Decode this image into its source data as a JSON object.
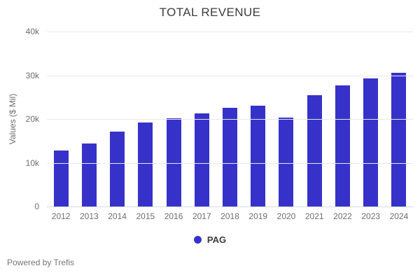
{
  "title": "TOTAL REVENUE",
  "footer": {
    "text": "Powered by Trefis"
  },
  "legend": {
    "items": [
      {
        "label": "PAG",
        "color": "#3632c9"
      }
    ]
  },
  "colors": {
    "bar": "#3632c9",
    "gridline": "#e8e8e8",
    "axis_line": "#d4d9e2",
    "title_text": "#3d3d3d",
    "tick_text": "#6e6e6e",
    "footer_text": "#757575"
  },
  "chart_data": {
    "type": "bar",
    "title": "TOTAL REVENUE",
    "xlabel": "",
    "ylabel": "Values ($ Mil)",
    "categories": [
      "2012",
      "2013",
      "2014",
      "2015",
      "2016",
      "2017",
      "2018",
      "2019",
      "2020",
      "2021",
      "2022",
      "2023",
      "2024"
    ],
    "series": [
      {
        "name": "PAG",
        "color": "#3632c9",
        "values": [
          12800,
          14400,
          17100,
          19200,
          20100,
          21300,
          22600,
          23100,
          20300,
          25400,
          27700,
          29300,
          30600
        ]
      }
    ],
    "ylim": [
      0,
      40000
    ],
    "yticks": [
      {
        "value": 0,
        "label": "0"
      },
      {
        "value": 10000,
        "label": "10k"
      },
      {
        "value": 20000,
        "label": "20k"
      },
      {
        "value": 30000,
        "label": "30k"
      },
      {
        "value": 40000,
        "label": "40k"
      }
    ],
    "grid": true,
    "legend_position": "bottom"
  }
}
